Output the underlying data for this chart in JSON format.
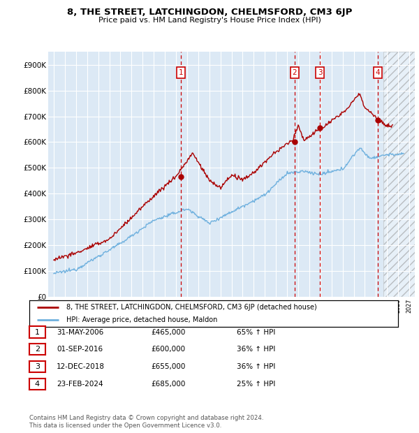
{
  "title": "8, THE STREET, LATCHINGDON, CHELMSFORD, CM3 6JP",
  "subtitle": "Price paid vs. HM Land Registry's House Price Index (HPI)",
  "ylim": [
    0,
    950000
  ],
  "yticks": [
    0,
    100000,
    200000,
    300000,
    400000,
    500000,
    600000,
    700000,
    800000,
    900000
  ],
  "ytick_labels": [
    "£0",
    "£100K",
    "£200K",
    "£300K",
    "£400K",
    "£500K",
    "£600K",
    "£700K",
    "£800K",
    "£900K"
  ],
  "xlim_start": 1994.5,
  "xlim_end": 2027.5,
  "hpi_color": "#6eb0de",
  "price_color": "#aa0000",
  "background_color": "#dce9f5",
  "grid_color": "#ffffff",
  "sale_line_color": "#cc0000",
  "transactions": [
    {
      "num": 1,
      "date_x": 2006.42,
      "price": 465000,
      "label": "31-MAY-2006",
      "amount": "£465,000",
      "pct": "65% ↑ HPI"
    },
    {
      "num": 2,
      "date_x": 2016.67,
      "price": 600000,
      "label": "01-SEP-2016",
      "amount": "£600,000",
      "pct": "36% ↑ HPI"
    },
    {
      "num": 3,
      "date_x": 2018.96,
      "price": 655000,
      "label": "12-DEC-2018",
      "amount": "£655,000",
      "pct": "36% ↑ HPI"
    },
    {
      "num": 4,
      "date_x": 2024.15,
      "price": 685000,
      "label": "23-FEB-2024",
      "amount": "£685,000",
      "pct": "25% ↑ HPI"
    }
  ],
  "legend_entries": [
    "8, THE STREET, LATCHINGDON, CHELMSFORD, CM3 6JP (detached house)",
    "HPI: Average price, detached house, Maldon"
  ],
  "footer_lines": [
    "Contains HM Land Registry data © Crown copyright and database right 2024.",
    "This data is licensed under the Open Government Licence v3.0."
  ]
}
